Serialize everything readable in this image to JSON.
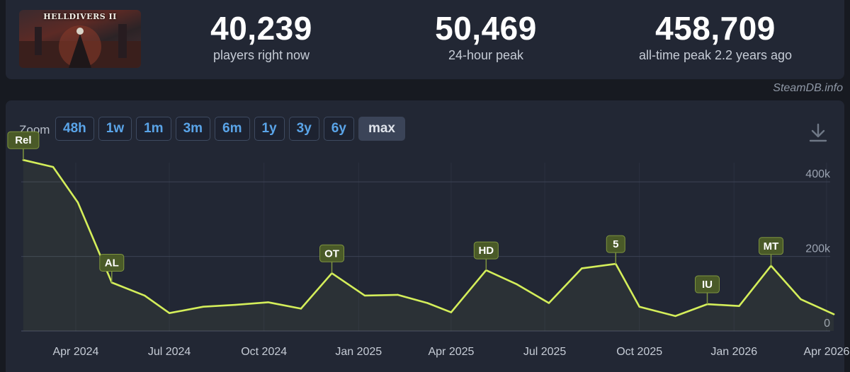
{
  "game": {
    "thumbnail_text": "HELLDIVERS II"
  },
  "stats": [
    {
      "value": "40,239",
      "label": "players right now"
    },
    {
      "value": "50,469",
      "label": "24-hour peak"
    },
    {
      "value": "458,709",
      "label": "all-time peak 2.2 years ago"
    }
  ],
  "credit": "SteamDB.info",
  "zoom": {
    "label": "Zoom",
    "options": [
      "48h",
      "1w",
      "1m",
      "3m",
      "6m",
      "1y",
      "3y",
      "6y",
      "max"
    ],
    "active": "max"
  },
  "icons": {
    "download": "download-icon"
  },
  "colors": {
    "line": "#d4ee5a",
    "annotation_bg": "#4a5a28",
    "annotation_border": "#7e943f",
    "zoom_text": "#5aa4e8"
  },
  "chart_data": {
    "type": "line",
    "title": "",
    "xlabel": "",
    "ylabel": "",
    "ylim": [
      0,
      480000
    ],
    "y_ticks": [
      {
        "value": 0,
        "label": "0"
      },
      {
        "value": 200000,
        "label": "200k"
      },
      {
        "value": 400000,
        "label": "400k"
      }
    ],
    "x_ticks": [
      {
        "date": "2024-04-01",
        "label": "Apr 2024"
      },
      {
        "date": "2024-07-01",
        "label": "Jul 2024"
      },
      {
        "date": "2024-10-01",
        "label": "Oct 2024"
      },
      {
        "date": "2025-01-01",
        "label": "Jan 2025"
      },
      {
        "date": "2025-04-01",
        "label": "Apr 2025"
      },
      {
        "date": "2025-07-01",
        "label": "Jul 2025"
      },
      {
        "date": "2025-10-01",
        "label": "Oct 2025"
      },
      {
        "date": "2026-01-01",
        "label": "Jan 2026"
      },
      {
        "date": "2026-04-01",
        "label": "Apr 2026"
      }
    ],
    "x_range": [
      "2024-02-08",
      "2026-04-10"
    ],
    "grid": true,
    "series": [
      {
        "points": [
          {
            "x": "2024-02-10",
            "y": 458709
          },
          {
            "x": "2024-03-10",
            "y": 440000
          },
          {
            "x": "2024-04-03",
            "y": 345000
          },
          {
            "x": "2024-05-06",
            "y": 130000
          },
          {
            "x": "2024-06-07",
            "y": 95000
          },
          {
            "x": "2024-07-01",
            "y": 48000
          },
          {
            "x": "2024-08-03",
            "y": 65000
          },
          {
            "x": "2024-09-03",
            "y": 70000
          },
          {
            "x": "2024-10-05",
            "y": 77000
          },
          {
            "x": "2024-11-06",
            "y": 60000
          },
          {
            "x": "2024-12-06",
            "y": 155000
          },
          {
            "x": "2025-01-07",
            "y": 95000
          },
          {
            "x": "2025-02-08",
            "y": 97000
          },
          {
            "x": "2025-03-09",
            "y": 75000
          },
          {
            "x": "2025-04-01",
            "y": 50000
          },
          {
            "x": "2025-05-05",
            "y": 163000
          },
          {
            "x": "2025-06-04",
            "y": 125000
          },
          {
            "x": "2025-07-05",
            "y": 75000
          },
          {
            "x": "2025-08-06",
            "y": 168000
          },
          {
            "x": "2025-09-08",
            "y": 180000
          },
          {
            "x": "2025-10-01",
            "y": 65000
          },
          {
            "x": "2025-11-05",
            "y": 40000
          },
          {
            "x": "2025-12-06",
            "y": 72000
          },
          {
            "x": "2026-01-06",
            "y": 67000
          },
          {
            "x": "2026-02-06",
            "y": 175000
          },
          {
            "x": "2026-03-07",
            "y": 85000
          },
          {
            "x": "2026-04-08",
            "y": 45000
          }
        ]
      }
    ],
    "annotations": [
      {
        "label": "Rel",
        "x": "2024-02-10",
        "y": 458709
      },
      {
        "label": "AL",
        "x": "2024-05-06",
        "y": 130000
      },
      {
        "label": "OT",
        "x": "2024-12-06",
        "y": 155000
      },
      {
        "label": "HD",
        "x": "2025-05-05",
        "y": 163000
      },
      {
        "label": "5",
        "x": "2025-09-08",
        "y": 180000
      },
      {
        "label": "IU",
        "x": "2025-12-06",
        "y": 72000
      },
      {
        "label": "MT",
        "x": "2026-02-06",
        "y": 175000
      }
    ]
  }
}
